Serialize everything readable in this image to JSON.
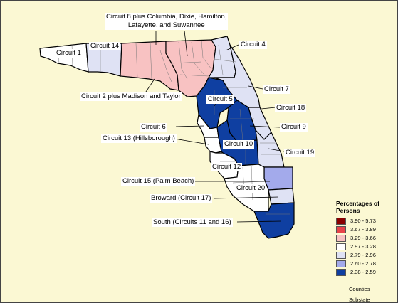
{
  "labels": {
    "circuit1": "Circuit 1",
    "circuit14": "Circuit 14",
    "circuit8": "Circuit 8 plus Columbia, Dixie, Hamilton,\nLafayette, and Suwannee",
    "circuit4": "Circuit 4",
    "circuit2": "Circuit 2 plus Madison and Taylor",
    "circuit7": "Circuit 7",
    "circuit5": "Circuit 5",
    "circuit18": "Circuit 18",
    "circuit6": "Circuit 6",
    "circuit9": "Circuit 9",
    "circuit13": "Circuit 13 (Hillsborough)",
    "circuit10": "Circuit 10",
    "circuit19": "Circuit 19",
    "circuit12": "Circuit 12",
    "circuit15": "Circuit 15 (Palm Beach)",
    "circuit20": "Circuit 20",
    "broward": "Broward (Circuit 17)",
    "south": "South (Circuits 11 and 16)"
  },
  "legend": {
    "title": "Percentages of Persons",
    "classes": [
      {
        "range": "3.90 - 5.73",
        "color": "#8b0000"
      },
      {
        "range": "3.67 - 3.89",
        "color": "#e8434a"
      },
      {
        "range": "3.29 - 3.66",
        "color": "#f8c2c2"
      },
      {
        "range": "2.97 - 3.28",
        "color": "#ffffff"
      },
      {
        "range": "2.79 - 2.96",
        "color": "#dfe2f4"
      },
      {
        "range": "2.60 - 2.78",
        "color": "#a3aaeb"
      },
      {
        "range": "2.38 - 2.59",
        "color": "#0f3fa1"
      }
    ],
    "counties_label": "Counties",
    "substate_label": "Substate Regions"
  }
}
